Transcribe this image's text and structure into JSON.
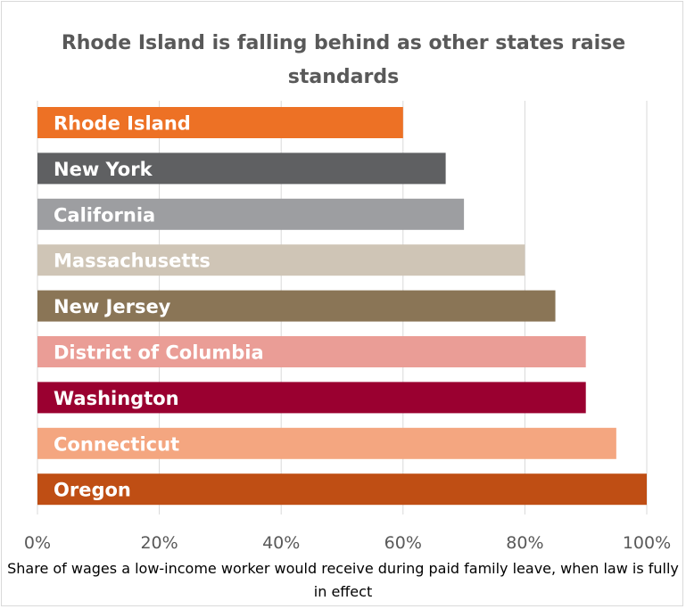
{
  "chart_data": {
    "type": "bar",
    "orientation": "horizontal",
    "title": "Rhode Island is falling behind as other states raise standards",
    "xlabel": "Share of wages a low-income worker would receive during paid family leave, when law is fully in effect",
    "ylabel": "",
    "xlim": [
      0,
      100
    ],
    "x_ticks": [
      "0%",
      "20%",
      "40%",
      "60%",
      "80%",
      "100%"
    ],
    "grid": true,
    "categories": [
      "Rhode Island",
      "New York",
      "California",
      "Massachusetts",
      "New Jersey",
      "District of Columbia",
      "Washington",
      "Connecticut",
      "Oregon"
    ],
    "values": [
      60,
      67,
      70,
      80,
      85,
      90,
      90,
      95,
      100
    ],
    "colors": [
      "#ED7125",
      "#5F6062",
      "#9D9EA1",
      "#CFC5B6",
      "#8A7556",
      "#EA9D96",
      "#9A0030",
      "#F4A680",
      "#BF4E14"
    ]
  }
}
